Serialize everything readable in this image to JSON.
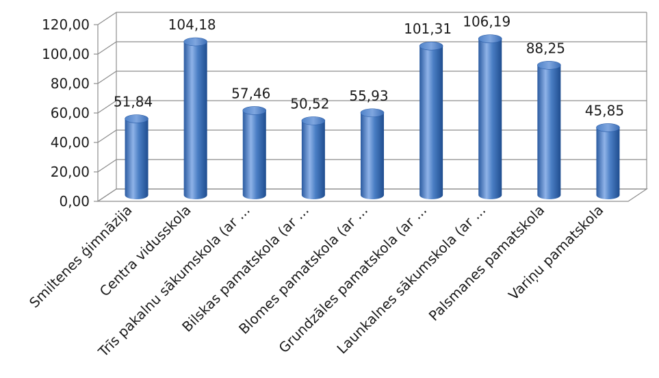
{
  "chart_data": {
    "type": "bar",
    "style": "3d-cylinder",
    "categories": [
      "Smiltenes ģimnāzija",
      "Centra vidusskola",
      "Trīs pakalnu sākumskola (ar ...",
      "Bilskas pamatskola (ar ...",
      "Blomes pamatskola (ar ...",
      "Grundzāles pamatskola (ar ...",
      "Launkalnes sākumskola (ar ...",
      "Palsmanes pamatskola",
      "Variņu pamatskola"
    ],
    "values": [
      51.84,
      104.18,
      57.46,
      50.52,
      55.93,
      101.31,
      106.19,
      88.25,
      45.85
    ],
    "data_labels": [
      "51,84",
      "104,18",
      "57,46",
      "50,52",
      "55,93",
      "101,31",
      "106,19",
      "88,25",
      "45,85"
    ],
    "y_ticks": [
      0,
      20,
      40,
      60,
      80,
      100,
      120
    ],
    "y_tick_labels": [
      "0,00",
      "20,00",
      "40,00",
      "60,00",
      "80,00",
      "100,00",
      "120,00"
    ],
    "ylim": [
      0,
      120
    ],
    "grid": true,
    "legend": "none",
    "colors": {
      "bar_light": "#8fb3e8",
      "bar_mid": "#4a7ec4",
      "bar_dark": "#1f4d8f",
      "grid": "#8c8c8c",
      "text": "#1a1a1a"
    }
  }
}
